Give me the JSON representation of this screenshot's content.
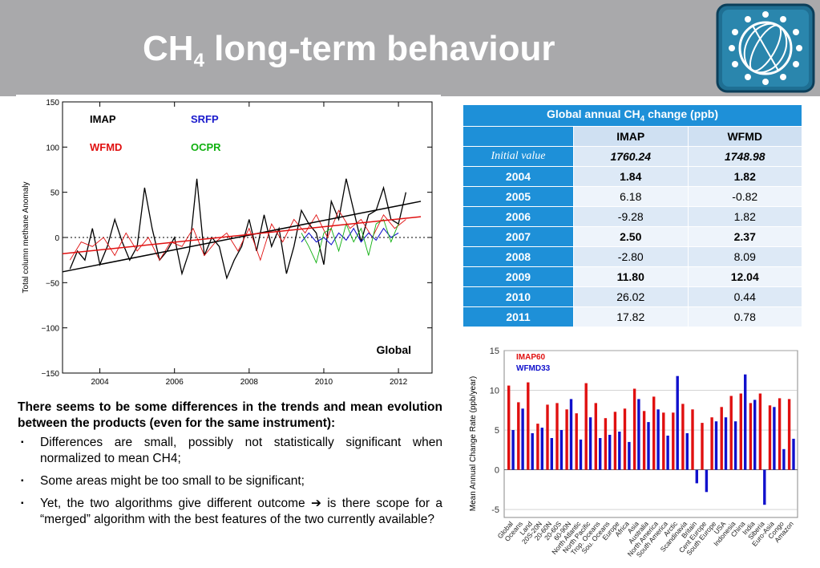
{
  "header": {
    "title_main": "CH",
    "title_sub": "4",
    "title_rest": " long-term behaviour"
  },
  "table": {
    "caption_pre": "Global annual CH",
    "caption_sub": "4",
    "caption_post": " change (ppb)",
    "columns": [
      "IMAP",
      "WFMD"
    ],
    "rows": [
      {
        "label": "Initial value",
        "imap": "1760.24",
        "wfmd": "1748.98"
      },
      {
        "label": "2004",
        "imap": "1.84",
        "wfmd": "1.82"
      },
      {
        "label": "2005",
        "imap": "6.18",
        "wfmd": "-0.82"
      },
      {
        "label": "2006",
        "imap": "-9.28",
        "wfmd": "1.82"
      },
      {
        "label": "2007",
        "imap": "2.50",
        "wfmd": "2.37"
      },
      {
        "label": "2008",
        "imap": "-2.80",
        "wfmd": "8.09"
      },
      {
        "label": "2009",
        "imap": "11.80",
        "wfmd": "12.04"
      },
      {
        "label": "2010",
        "imap": "26.02",
        "wfmd": "0.44"
      },
      {
        "label": "2011",
        "imap": "17.82",
        "wfmd": "0.78"
      }
    ]
  },
  "text": {
    "intro": "There seems to be some differences in the trends and mean evolution between the products (even for the same instrument):",
    "bullets": [
      "Differences are small, possibly not statistically significant when normalized to mean CH4;",
      "Some areas might be too small to be significant;"
    ],
    "bullet3_pre": "Yet, the two algorithms give different outcome ",
    "bullet3_arrow": "➔",
    "bullet3_post": " is there scope for a “merged” algorithm with the best features of the two currently available?",
    "bullet_glyph": "▪"
  },
  "chart_data": [
    {
      "type": "line",
      "ylabel": "Total column methane Anomaly",
      "xlim": [
        2003.0,
        2012.9
      ],
      "ylim": [
        -150,
        150
      ],
      "xticks": [
        2004,
        2006,
        2008,
        2010,
        2012
      ],
      "yticks": [
        150,
        100,
        50,
        0,
        -50,
        -100,
        -150
      ],
      "legend": [
        {
          "name": "IMAP",
          "color": "#000000"
        },
        {
          "name": "SRFP",
          "color": "#1a1acc"
        },
        {
          "name": "WFMD",
          "color": "#e01010"
        },
        {
          "name": "OCPR",
          "color": "#10b010"
        }
      ],
      "annotation": "Global",
      "trend_lines": [
        {
          "name": "IMAP",
          "color": "#000000",
          "x": [
            2003.0,
            2012.6
          ],
          "y": [
            -38,
            40
          ]
        },
        {
          "name": "WFMD",
          "color": "#e01010",
          "x": [
            2003.0,
            2012.6
          ],
          "y": [
            -18,
            23
          ]
        }
      ],
      "series": [
        {
          "name": "IMAP",
          "color": "#000000",
          "x": [
            2003.2,
            2003.4,
            2003.6,
            2003.8,
            2004.0,
            2004.2,
            2004.4,
            2004.6,
            2004.8,
            2005.0,
            2005.2,
            2005.4,
            2005.6,
            2005.8,
            2006.0,
            2006.2,
            2006.4,
            2006.6,
            2006.8,
            2007.0,
            2007.2,
            2007.4,
            2007.6,
            2007.8,
            2008.0,
            2008.2,
            2008.4,
            2008.6,
            2008.8,
            2009.0,
            2009.2,
            2009.4,
            2009.6,
            2009.8,
            2010.0,
            2010.2,
            2010.4,
            2010.6,
            2010.8,
            2011.0,
            2011.2,
            2011.4,
            2011.6,
            2011.8,
            2012.0,
            2012.2
          ],
          "y": [
            -35,
            -15,
            -25,
            10,
            -30,
            -10,
            20,
            -5,
            -25,
            -10,
            55,
            10,
            -25,
            -15,
            0,
            -40,
            -15,
            65,
            -20,
            0,
            -10,
            -45,
            -25,
            -10,
            20,
            -15,
            25,
            -10,
            10,
            -40,
            -10,
            30,
            15,
            5,
            -30,
            40,
            20,
            65,
            30,
            -5,
            25,
            30,
            55,
            20,
            15,
            50
          ]
        },
        {
          "name": "WFMD",
          "color": "#e01010",
          "x": [
            2003.2,
            2003.5,
            2003.8,
            2004.1,
            2004.4,
            2004.7,
            2005.0,
            2005.3,
            2005.6,
            2005.9,
            2006.2,
            2006.5,
            2006.8,
            2007.1,
            2007.4,
            2007.7,
            2008.0,
            2008.3,
            2008.6,
            2008.9,
            2009.2,
            2009.5,
            2009.8,
            2010.1,
            2010.4,
            2010.7,
            2011.0,
            2011.3,
            2011.6,
            2011.9,
            2012.2
          ],
          "y": [
            -25,
            -5,
            -10,
            0,
            -20,
            5,
            -15,
            0,
            -25,
            -5,
            -10,
            10,
            -20,
            -5,
            5,
            -15,
            10,
            -25,
            15,
            -5,
            20,
            5,
            25,
            0,
            30,
            10,
            20,
            0,
            25,
            10,
            20
          ]
        },
        {
          "name": "SRFP",
          "color": "#1a1acc",
          "x": [
            2009.4,
            2009.6,
            2009.8,
            2010.0,
            2010.2,
            2010.4,
            2010.6,
            2010.8,
            2011.0,
            2011.2,
            2011.4,
            2011.6,
            2011.8,
            2012.0
          ],
          "y": [
            -5,
            5,
            -5,
            0,
            -8,
            5,
            -3,
            10,
            -5,
            5,
            -3,
            10,
            0,
            5
          ]
        },
        {
          "name": "OCPR",
          "color": "#10b010",
          "x": [
            2009.4,
            2009.6,
            2009.8,
            2010.0,
            2010.2,
            2010.4,
            2010.6,
            2010.8,
            2011.0,
            2011.2,
            2011.4,
            2011.6,
            2011.8,
            2012.0
          ],
          "y": [
            5,
            -10,
            -28,
            5,
            10,
            -15,
            15,
            -5,
            10,
            -20,
            15,
            20,
            -5,
            15
          ]
        }
      ]
    },
    {
      "type": "bar",
      "ylabel": "Mean Annual Change Rate (ppb/year)",
      "ylim": [
        -6,
        15
      ],
      "yticks": [
        15,
        10,
        5,
        0,
        -5
      ],
      "legend": [
        {
          "name": "IMAP60",
          "color": "#e01010"
        },
        {
          "name": "WFMD33",
          "color": "#1010cc"
        }
      ],
      "categories": [
        "Global",
        "Oceans",
        "Land",
        "20S-20N",
        "20-60N",
        "20-60S",
        "60-90N",
        "North Atlantic",
        "North Pacific",
        "Trop. Oceans",
        "Sou. Oceans",
        "Europe",
        "Africa",
        "Asia",
        "Australia",
        "North America",
        "South America",
        "Arctic",
        "Scandinavia",
        "Britain",
        "Cent Europe",
        "South Europe",
        "USA",
        "Indonesia",
        "China",
        "India",
        "Siberia",
        "Euro-Asia",
        "Congo",
        "Amazon"
      ],
      "series": [
        {
          "name": "IMAP60",
          "color": "#e01010",
          "values": [
            10.6,
            8.5,
            11.0,
            5.8,
            8.2,
            8.4,
            7.6,
            7.1,
            10.9,
            8.4,
            6.5,
            7.3,
            7.7,
            10.2,
            7.4,
            9.2,
            7.2,
            7.2,
            8.3,
            7.6,
            5.9,
            6.6,
            7.9,
            9.3,
            9.6,
            8.4,
            9.6,
            8.1,
            9.0,
            8.9
          ]
        },
        {
          "name": "WFMD33",
          "color": "#1010cc",
          "values": [
            5.0,
            7.7,
            4.6,
            5.3,
            4.0,
            5.0,
            8.9,
            3.8,
            6.6,
            4.0,
            4.4,
            4.8,
            3.5,
            8.9,
            6.0,
            7.6,
            4.3,
            11.8,
            4.6,
            -1.7,
            -2.8,
            6.1,
            6.6,
            6.1,
            12.0,
            8.8,
            -4.4,
            7.9,
            2.6,
            3.9
          ]
        }
      ]
    }
  ]
}
